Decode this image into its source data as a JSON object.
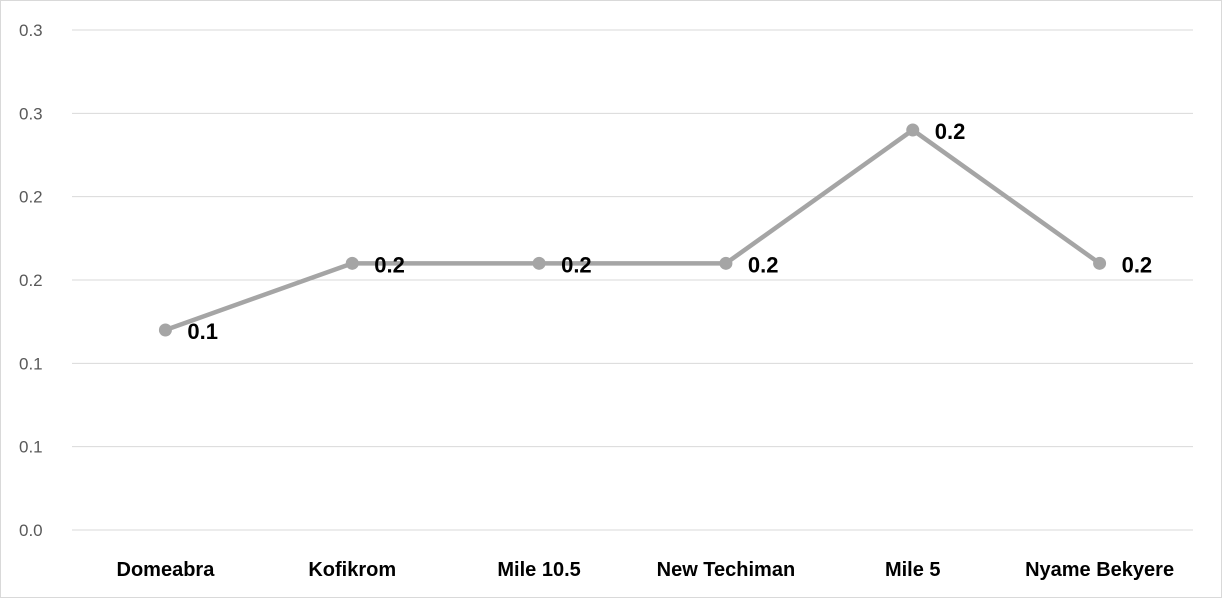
{
  "chart_data": {
    "type": "line",
    "categories": [
      "Domeabra",
      "Kofikrom",
      "Mile 10.5",
      "New Techiman",
      "Mile 5",
      "Nyame Bekyere"
    ],
    "series": [
      {
        "values": [
          0.12,
          0.16,
          0.16,
          0.16,
          0.24,
          0.16
        ],
        "data_labels": [
          "0.1",
          "0.2",
          "0.2",
          "0.2",
          "0.2",
          "0.2"
        ],
        "color": "#a5a5a5"
      }
    ],
    "y_ticks": [
      {
        "value": 0.0,
        "label": "0.0"
      },
      {
        "value": 0.05,
        "label": "0.1"
      },
      {
        "value": 0.1,
        "label": "0.1"
      },
      {
        "value": 0.15,
        "label": "0.2"
      },
      {
        "value": 0.2,
        "label": "0.2"
      },
      {
        "value": 0.25,
        "label": "0.3"
      },
      {
        "value": 0.3,
        "label": "0.3"
      }
    ],
    "ylim": [
      0,
      0.3
    ],
    "grid": true,
    "legend": "none",
    "colors": {
      "series": "#a5a5a5",
      "grid": "#d9d9d9",
      "tick_text": "#595959",
      "label_text": "#000000"
    }
  }
}
